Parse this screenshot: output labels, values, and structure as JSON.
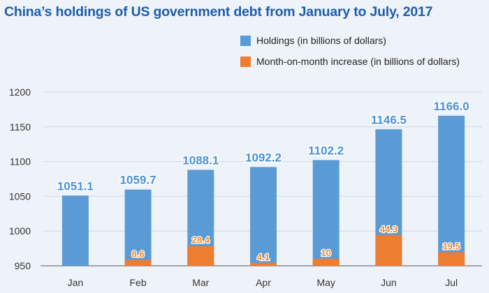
{
  "colors": {
    "title": "#1e5ea8",
    "holdings": "#5b9bd5",
    "increase": "#ed7d31",
    "value_label": "#4a90d9",
    "increase_label": "#f28a2e",
    "grid": "#cfd8e3",
    "axis": "#555555"
  },
  "chart_data": {
    "type": "bar",
    "title": "China’s holdings of US government debt from January to July, 2017",
    "categories": [
      "Jan",
      "Feb",
      "Mar",
      "Apr",
      "May",
      "Jun",
      "Jul"
    ],
    "series": [
      {
        "name": "Holdings (in billions of dollars)",
        "values": [
          1051.1,
          1059.7,
          1088.1,
          1092.2,
          1102.2,
          1146.5,
          1166.0
        ],
        "labels": [
          "1051.1",
          "1059.7",
          "1088.1",
          "1092.2",
          "1102.2",
          "1146.5",
          "1166.0"
        ]
      },
      {
        "name": "Month-on-month increase (in billions of dollars)",
        "values": [
          null,
          8.6,
          28.4,
          4.1,
          10,
          44.3,
          19.5
        ],
        "labels": [
          "",
          "8.6",
          "28.4",
          "4.1",
          "10",
          "44.3",
          "19.5"
        ]
      }
    ],
    "ylim": [
      950,
      1200
    ],
    "yticks": [
      "950",
      "1000",
      "1050",
      "1100",
      "1150",
      "1200"
    ],
    "grid": true,
    "legend": "top-right",
    "xlabel": "",
    "ylabel": ""
  }
}
